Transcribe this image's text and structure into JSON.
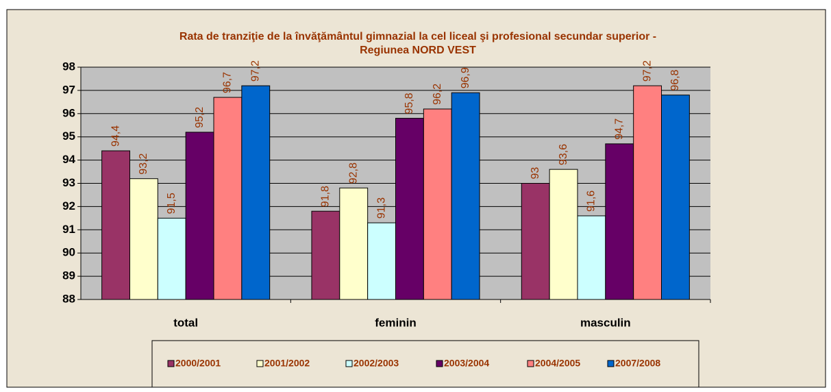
{
  "chart_data": {
    "type": "bar",
    "title": [
      "Rata de tranziţie de la  învăţământul gimnazial la cel liceal şi profesional secundar superior -",
      "Regiunea NORD VEST"
    ],
    "categories": [
      "total",
      "feminin",
      "masculin"
    ],
    "series": [
      {
        "name": "2000/2001",
        "color": "#993366",
        "values": [
          94.4,
          91.8,
          93
        ],
        "value_labels": [
          "94,4",
          "91,8",
          "93"
        ]
      },
      {
        "name": "2001/2002",
        "color": "#ffffcc",
        "values": [
          93.2,
          92.8,
          93.6
        ],
        "value_labels": [
          "93,2",
          "92,8",
          "93,6"
        ]
      },
      {
        "name": "2002/2003",
        "color": "#ccffff",
        "values": [
          91.5,
          91.3,
          91.6
        ],
        "value_labels": [
          "91,5",
          "91,3",
          "91,6"
        ]
      },
      {
        "name": "2003/2004",
        "color": "#660066",
        "values": [
          95.2,
          95.8,
          94.7
        ],
        "value_labels": [
          "95,2",
          "95,8",
          "94,7"
        ]
      },
      {
        "name": "2004/2005",
        "color": "#ff8080",
        "values": [
          96.7,
          96.2,
          97.2
        ],
        "value_labels": [
          "96,7",
          "96,2",
          "97,2"
        ]
      },
      {
        "name": "2007/2008",
        "color": "#0066cc",
        "values": [
          97.2,
          96.9,
          96.8
        ],
        "value_labels": [
          "97,2",
          "96,9",
          "96,8"
        ]
      }
    ],
    "ylim": [
      88,
      98
    ],
    "yticks": [
      88,
      89,
      90,
      91,
      92,
      93,
      94,
      95,
      96,
      97,
      98
    ],
    "grid": true,
    "legend": "bottom"
  }
}
